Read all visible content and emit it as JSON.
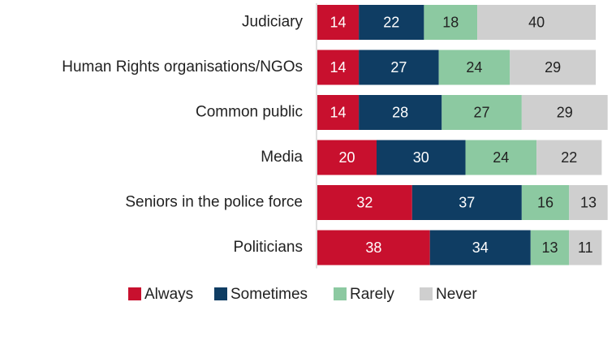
{
  "chart_data": {
    "type": "bar",
    "orientation": "horizontal",
    "stacked": true,
    "categories": [
      "Judiciary",
      "Human Rights organisations/NGOs",
      "Common public",
      "Media",
      "Seniors in the police force",
      "Politicians"
    ],
    "series": [
      {
        "name": "Always",
        "color": "#c8102e",
        "label_color": "#ffffff",
        "values": [
          14,
          14,
          14,
          20,
          32,
          38
        ]
      },
      {
        "name": "Sometimes",
        "color": "#0f3d63",
        "label_color": "#ffffff",
        "values": [
          22,
          27,
          28,
          30,
          37,
          34
        ]
      },
      {
        "name": "Rarely",
        "color": "#8cc9a1",
        "label_color": "#222222",
        "values": [
          18,
          24,
          27,
          24,
          16,
          13
        ]
      },
      {
        "name": "Never",
        "color": "#cfcfcf",
        "label_color": "#222222",
        "values": [
          40,
          29,
          29,
          22,
          13,
          11
        ]
      }
    ],
    "title": "",
    "xlabel": "",
    "ylabel": "",
    "grid": false,
    "legend_position": "bottom",
    "data_labels": true
  }
}
